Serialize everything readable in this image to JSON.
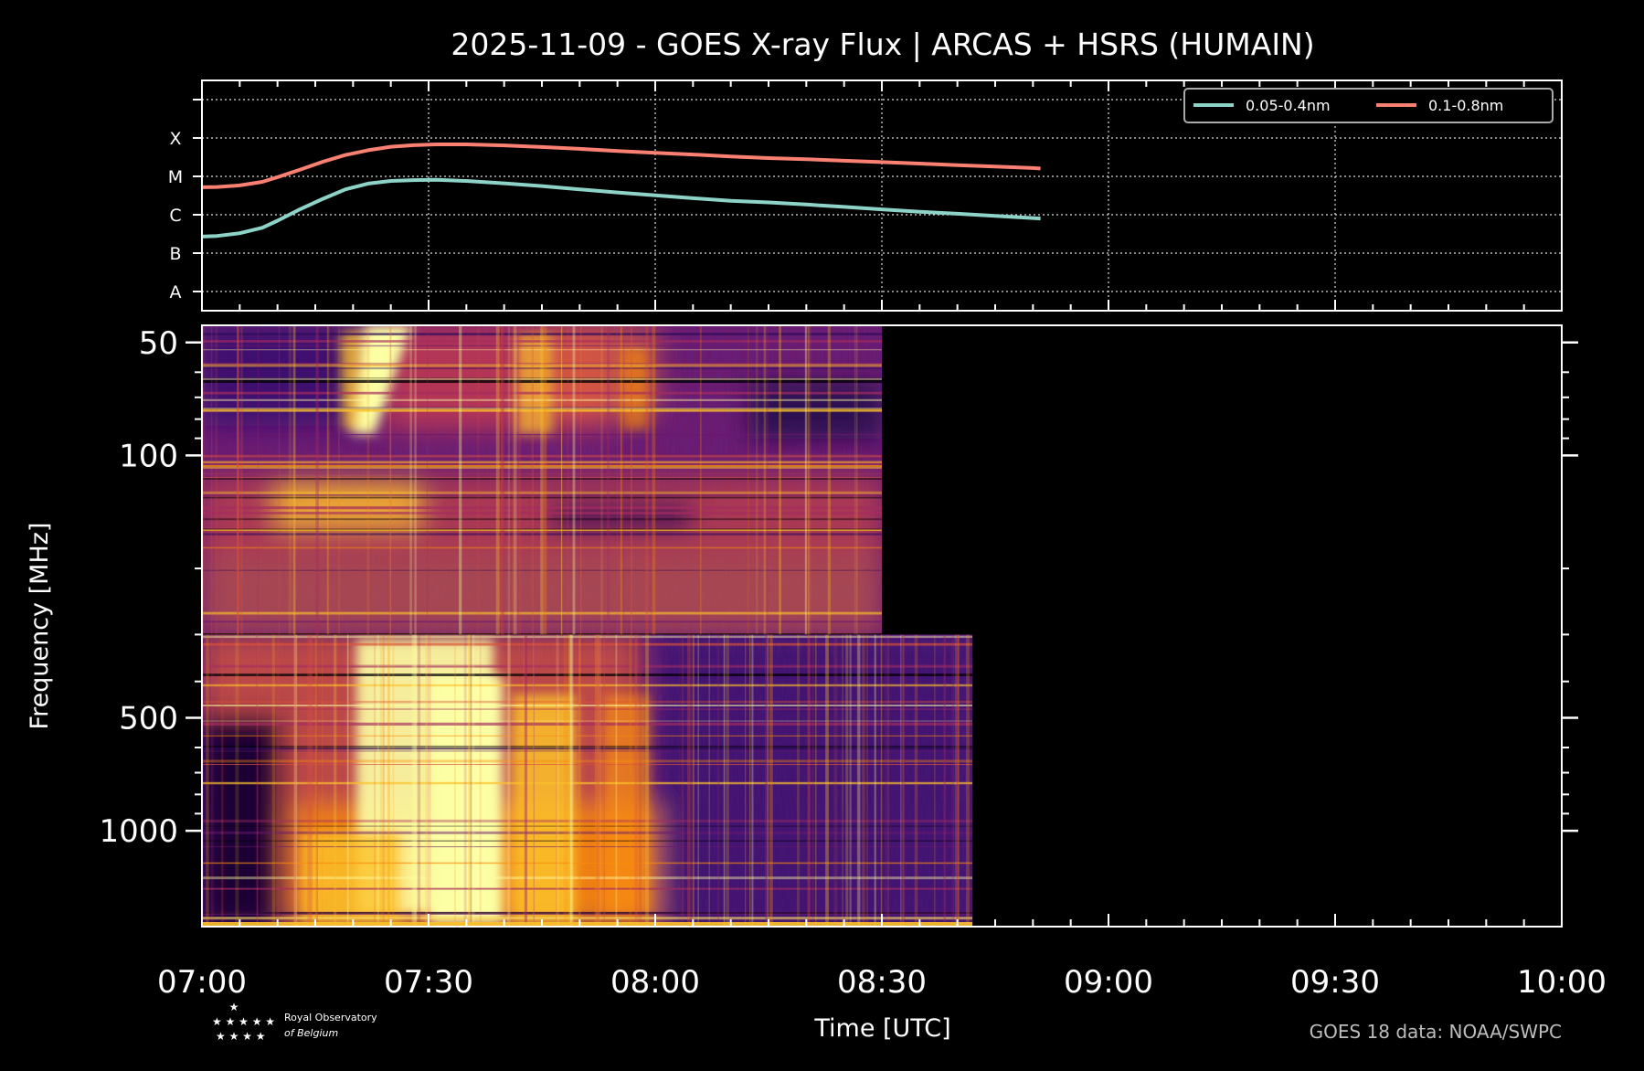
{
  "figure": {
    "title": "2025-11-09 - GOES X-ray Flux | ARCAS + HSRS (HUMAIN)",
    "credit": "GOES 18 data: NOAA/SWPC",
    "logo": {
      "line1": "Royal Observatory",
      "line2": "of Belgium"
    }
  },
  "colors": {
    "background": "#000000",
    "short_channel": "#8dd3c7",
    "long_channel": "#fa8072",
    "colormap": [
      "#000004",
      "#2a0a5a",
      "#6a176e",
      "#a52c60",
      "#dd513a",
      "#f98c0a",
      "#fbc229",
      "#fcffa4"
    ]
  },
  "chart_data": [
    {
      "type": "line",
      "panel": "goes-xray",
      "xlim": [
        "07:00",
        "10:00"
      ],
      "y_scale": "log (flare class)",
      "ytick_labels": [
        "A",
        "B",
        "C",
        "M",
        "X"
      ],
      "ylim": [
        "1e-8.5",
        "1e-2.5"
      ],
      "grid": true,
      "legend": "top-right",
      "x": [
        "07:00",
        "07:02",
        "07:05",
        "07:08",
        "07:10",
        "07:13",
        "07:16",
        "07:19",
        "07:22",
        "07:25",
        "07:28",
        "07:31",
        "07:35",
        "07:40",
        "07:45",
        "07:50",
        "07:55",
        "08:00",
        "08:05",
        "08:10",
        "08:15",
        "08:20",
        "08:25",
        "08:30",
        "08:35",
        "08:40",
        "08:45",
        "08:50",
        "08:51"
      ],
      "series": [
        {
          "name": "0.05-0.4nm",
          "values": [
            2.7e-07,
            2.8e-07,
            3.3e-07,
            4.6e-07,
            7e-07,
            1.4e-06,
            2.6e-06,
            4.6e-06,
            6.5e-06,
            7.6e-06,
            8e-06,
            8.1e-06,
            7.6e-06,
            6.6e-06,
            5.6e-06,
            4.6e-06,
            3.8e-06,
            3.2e-06,
            2.7e-06,
            2.3e-06,
            2.1e-06,
            1.85e-06,
            1.6e-06,
            1.38e-06,
            1.2e-06,
            1.06e-06,
            9.3e-07,
            8.2e-07,
            8e-07
          ]
        },
        {
          "name": "0.1-0.8nm",
          "values": [
            5.2e-06,
            5.3e-06,
            5.8e-06,
            7.2e-06,
            9.5e-06,
            1.5e-05,
            2.4e-05,
            3.6e-05,
            4.8e-05,
            5.9e-05,
            6.5e-05,
            6.8e-05,
            6.8e-05,
            6.4e-05,
            5.8e-05,
            5.2e-05,
            4.6e-05,
            4.1e-05,
            3.7e-05,
            3.3e-05,
            3e-05,
            2.8e-05,
            2.55e-05,
            2.35e-05,
            2.15e-05,
            1.95e-05,
            1.8e-05,
            1.65e-05,
            1.6e-05
          ]
        }
      ]
    },
    {
      "type": "heatmap",
      "panel": "radio-spectrogram",
      "xlabel": "Time [UTC]",
      "ylabel": "Frequency [MHz]",
      "xlim": [
        "07:00",
        "10:00"
      ],
      "x_ticks": [
        "07:00",
        "07:30",
        "08:00",
        "08:30",
        "09:00",
        "09:30",
        "10:00"
      ],
      "y_scale": "log",
      "ylim": [
        45,
        1800
      ],
      "y_ticks": [
        50,
        100,
        500,
        1000
      ],
      "instruments": [
        {
          "name": "ARCAS",
          "freq_range_mhz": [
            45,
            300
          ],
          "time_range": [
            "07:00",
            "08:30"
          ]
        },
        {
          "name": "HSRS",
          "freq_range_mhz": [
            300,
            1800
          ],
          "time_range": [
            "07:00",
            "08:42"
          ]
        }
      ]
    }
  ]
}
